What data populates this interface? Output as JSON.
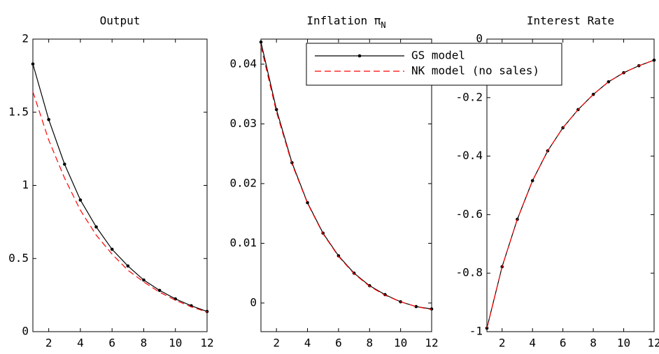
{
  "chart_data": [
    {
      "type": "line",
      "title": "Output",
      "x": [
        1,
        2,
        3,
        4,
        5,
        6,
        7,
        8,
        9,
        10,
        11,
        12
      ],
      "xlim": [
        1,
        12
      ],
      "xticks": [
        2,
        4,
        6,
        8,
        10,
        12
      ],
      "ylim": [
        0,
        2
      ],
      "yticks": [
        0,
        0.5,
        1,
        1.5,
        2
      ],
      "series": [
        {
          "color": "#000000",
          "style": "solid",
          "marker": true,
          "values": [
            1.83,
            1.45,
            1.145,
            0.9,
            0.716,
            0.563,
            0.449,
            0.353,
            0.282,
            0.224,
            0.177,
            0.138
          ]
        },
        {
          "color": "#ff0000",
          "style": "dashed",
          "marker": false,
          "values": [
            1.64,
            1.31,
            1.05,
            0.83,
            0.66,
            0.53,
            0.42,
            0.34,
            0.27,
            0.215,
            0.17,
            0.134
          ]
        }
      ]
    },
    {
      "type": "line",
      "title": "Inflation π",
      "title_subscript": "N",
      "x": [
        1,
        2,
        3,
        4,
        5,
        6,
        7,
        8,
        9,
        10,
        11,
        12
      ],
      "xlim": [
        1,
        12
      ],
      "xticks": [
        2,
        4,
        6,
        8,
        10,
        12
      ],
      "ylim": [
        -0.0048,
        0.0442
      ],
      "yticks": [
        0,
        0.01,
        0.02,
        0.03,
        0.04
      ],
      "legend": "upper right",
      "series": [
        {
          "name": "GS model",
          "color": "#000000",
          "style": "solid",
          "marker": true,
          "values": [
            0.0437,
            0.0324,
            0.0235,
            0.0168,
            0.0117,
            0.0079,
            0.005,
            0.0029,
            0.0014,
            0.0002,
            -0.0006,
            -0.001
          ]
        },
        {
          "name": "NK model (no sales)",
          "color": "#ff0000",
          "style": "dashed",
          "marker": false,
          "values": [
            0.043,
            0.032,
            0.0233,
            0.0167,
            0.0116,
            0.0078,
            0.0049,
            0.0028,
            0.0013,
            0.0002,
            -0.0006,
            -0.0011
          ]
        }
      ]
    },
    {
      "type": "line",
      "title": "Interest Rate",
      "x": [
        1,
        2,
        3,
        4,
        5,
        6,
        7,
        8,
        9,
        10,
        11,
        12
      ],
      "xlim": [
        1,
        12
      ],
      "xticks": [
        2,
        4,
        6,
        8,
        10,
        12
      ],
      "ylim": [
        -1,
        0
      ],
      "yticks": [
        -1,
        -0.8,
        -0.6,
        -0.4,
        -0.2,
        0
      ],
      "series": [
        {
          "color": "#000000",
          "style": "solid",
          "marker": true,
          "values": [
            -0.988,
            -0.778,
            -0.616,
            -0.484,
            -0.382,
            -0.303,
            -0.241,
            -0.189,
            -0.146,
            -0.115,
            -0.091,
            -0.072
          ]
        },
        {
          "color": "#ff0000",
          "style": "dashed",
          "marker": false,
          "values": [
            -0.988,
            -0.778,
            -0.616,
            -0.484,
            -0.382,
            -0.303,
            -0.241,
            -0.189,
            -0.146,
            -0.115,
            -0.091,
            -0.072
          ]
        }
      ]
    }
  ]
}
